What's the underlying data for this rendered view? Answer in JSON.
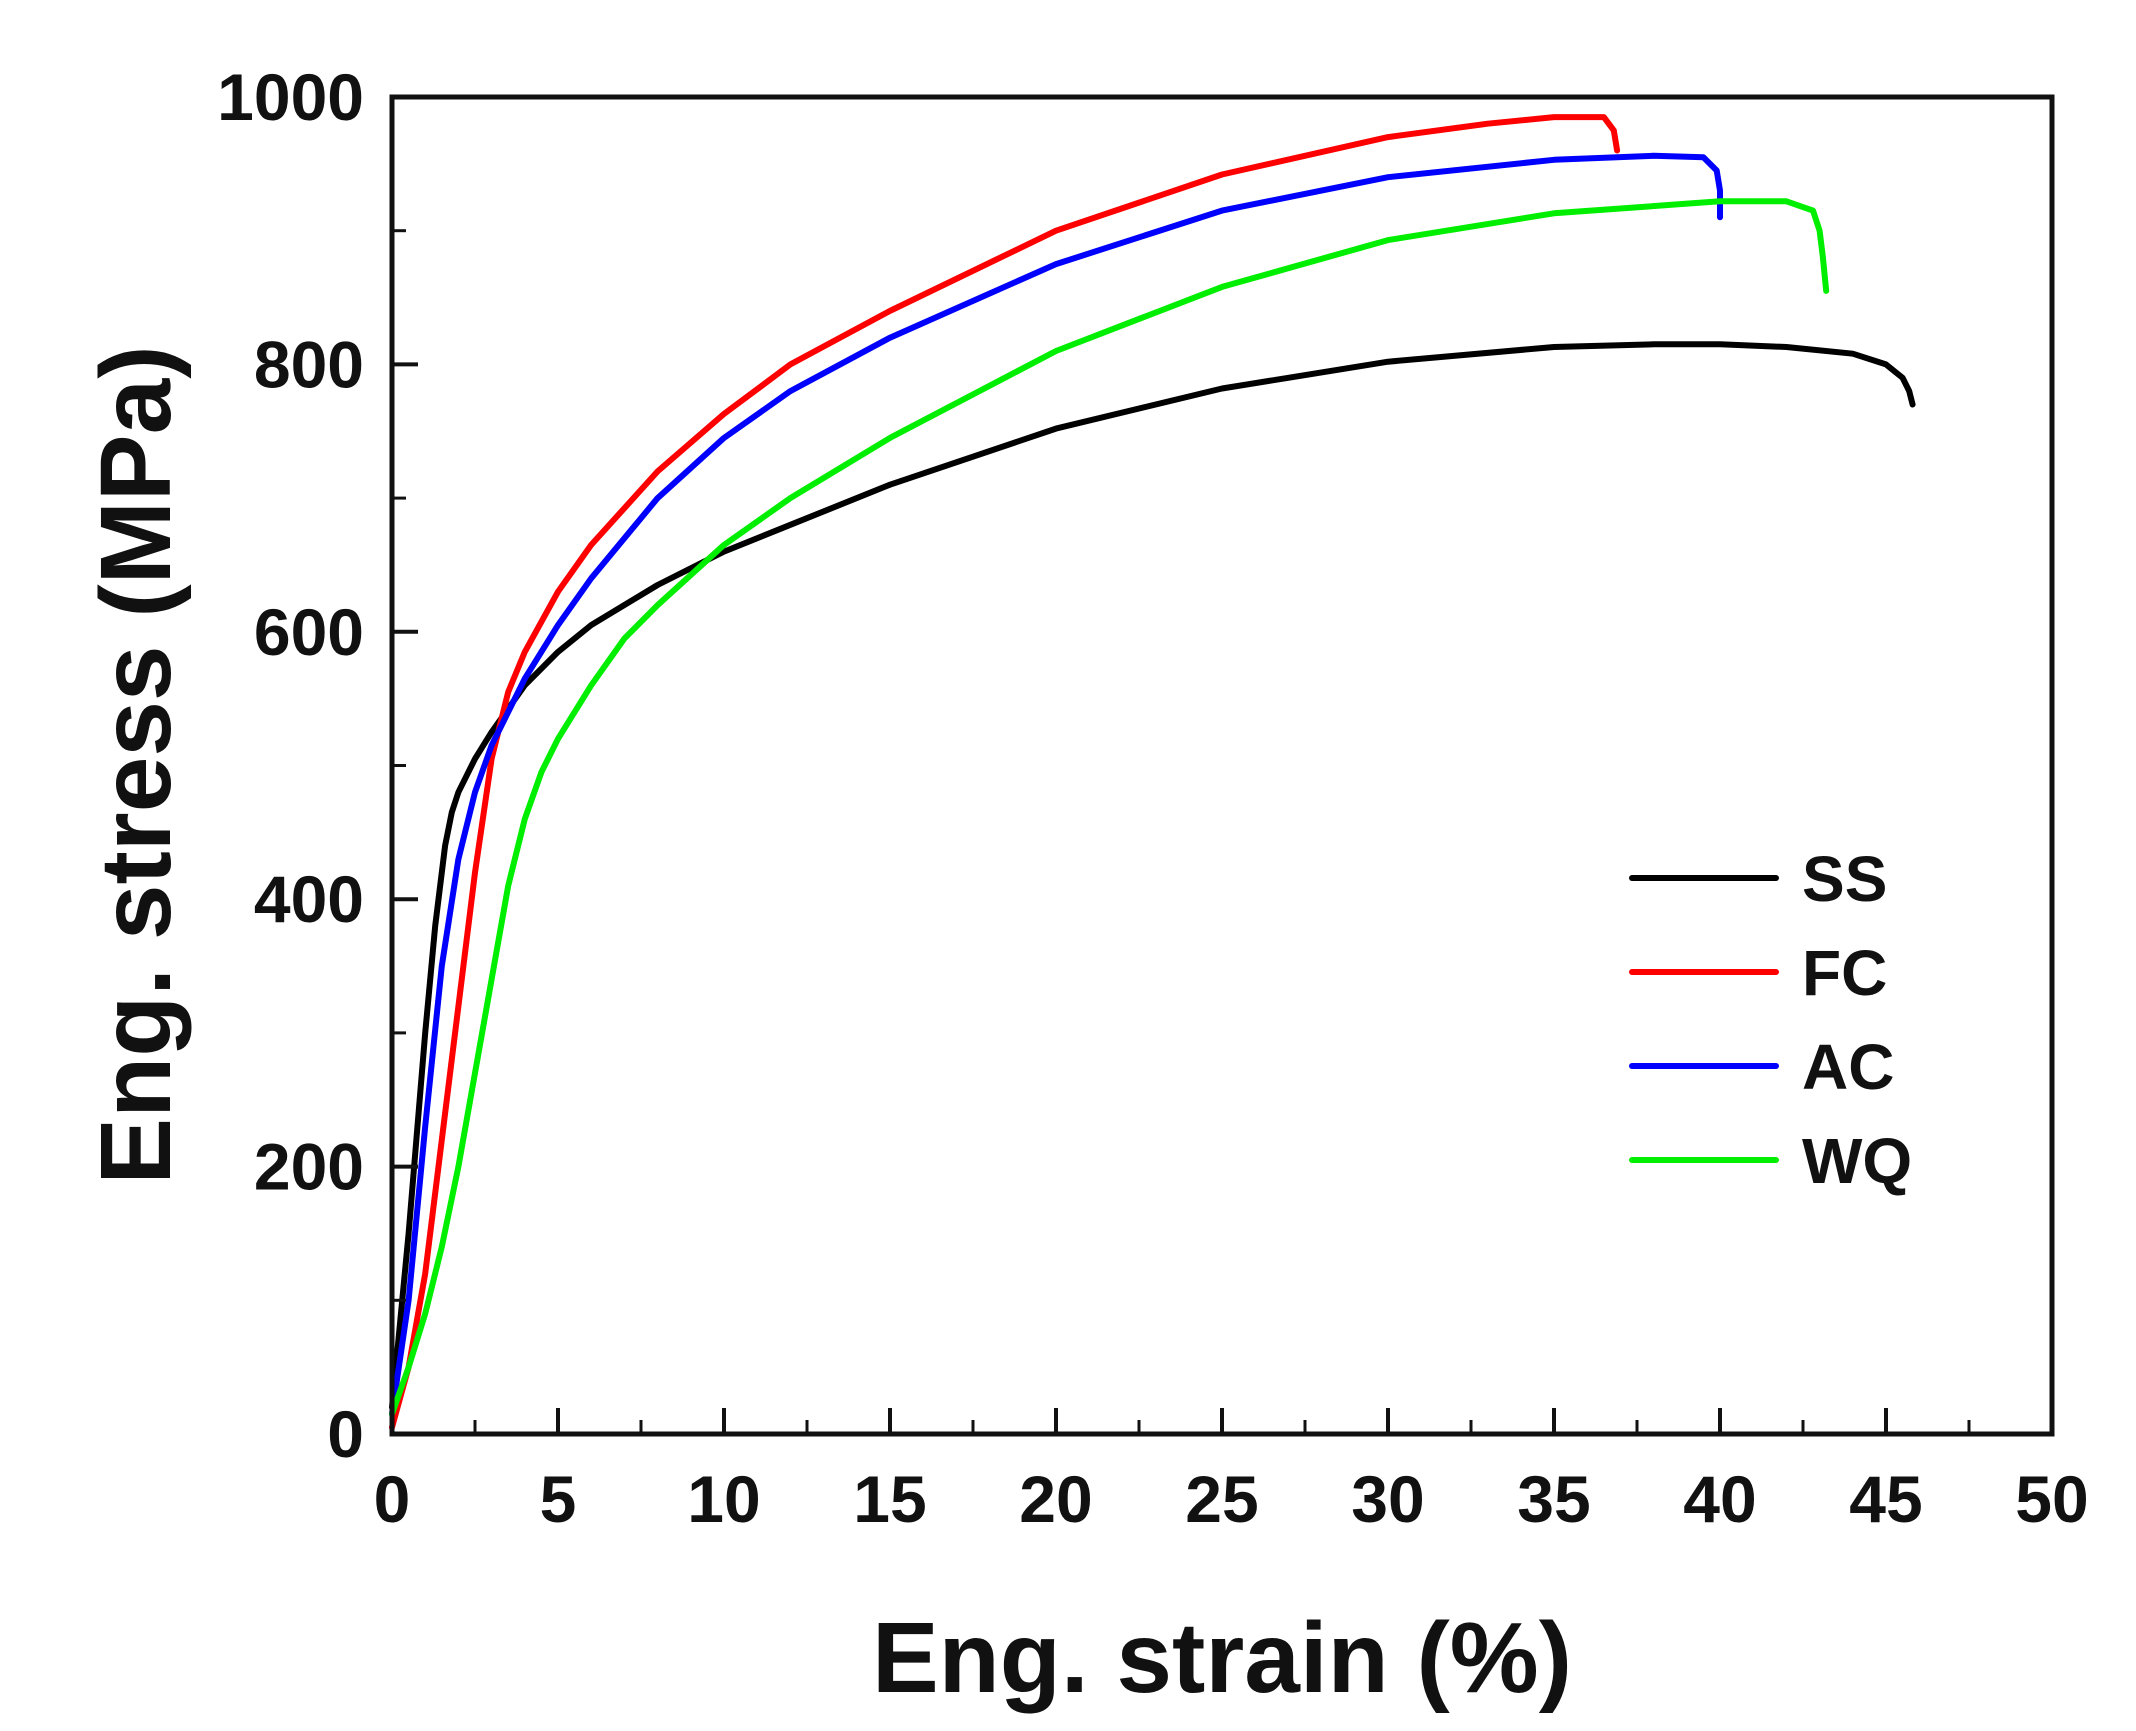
{
  "chart_data": {
    "type": "line",
    "title": "",
    "xlabel": "Eng. strain (%)",
    "ylabel": "Eng. stress (MPa)",
    "xlim": [
      0,
      50
    ],
    "ylim": [
      0,
      1000
    ],
    "x_ticks": [
      0,
      5,
      10,
      15,
      20,
      25,
      30,
      35,
      40,
      45,
      50
    ],
    "y_ticks": [
      0,
      200,
      400,
      600,
      800,
      1000
    ],
    "grid": false,
    "legend_position": "right",
    "series": [
      {
        "name": "SS",
        "color": "#000000",
        "x": [
          0,
          0.5,
          1.0,
          1.3,
          1.6,
          1.8,
          2.0,
          2.5,
          3.0,
          4.0,
          5.0,
          6.0,
          8.0,
          10.0,
          12.0,
          15.0,
          20.0,
          25.0,
          30.0,
          35.0,
          38.0,
          40.0,
          42.0,
          44.0,
          45.0,
          45.5,
          45.7,
          45.8
        ],
        "y": [
          20,
          150,
          300,
          380,
          440,
          465,
          480,
          505,
          525,
          560,
          585,
          605,
          635,
          660,
          680,
          710,
          752,
          782,
          802,
          813,
          815,
          815,
          813,
          808,
          800,
          790,
          780,
          770
        ]
      },
      {
        "name": "FC",
        "color": "#ff0000",
        "x": [
          0,
          0.5,
          1.0,
          1.5,
          2.0,
          2.5,
          3.0,
          3.5,
          4.0,
          5.0,
          6.0,
          8.0,
          10.0,
          12.0,
          15.0,
          20.0,
          25.0,
          30.0,
          33.0,
          35.0,
          36.5,
          36.8,
          36.9
        ],
        "y": [
          5,
          50,
          120,
          220,
          320,
          420,
          505,
          555,
          585,
          630,
          665,
          720,
          763,
          800,
          840,
          900,
          942,
          970,
          980,
          985,
          985,
          975,
          960
        ]
      },
      {
        "name": "AC",
        "color": "#0000ff",
        "x": [
          0,
          0.5,
          1.0,
          1.5,
          2.0,
          2.5,
          3.0,
          4.0,
          5.0,
          6.0,
          8.0,
          10.0,
          12.0,
          15.0,
          20.0,
          25.0,
          30.0,
          35.0,
          38.0,
          39.5,
          39.9,
          40.0,
          40.0
        ],
        "y": [
          15,
          100,
          230,
          350,
          430,
          480,
          515,
          565,
          605,
          640,
          700,
          745,
          780,
          820,
          875,
          915,
          940,
          953,
          956,
          955,
          945,
          930,
          910
        ]
      },
      {
        "name": "WQ",
        "color": "#00ee00",
        "x": [
          0,
          0.5,
          1.0,
          1.5,
          2.0,
          2.5,
          3.0,
          3.5,
          4.0,
          4.5,
          5.0,
          6.0,
          7.0,
          8.0,
          10.0,
          12.0,
          15.0,
          20.0,
          25.0,
          30.0,
          35.0,
          40.0,
          42.0,
          42.8,
          43.0,
          43.1,
          43.2
        ],
        "y": [
          15,
          50,
          90,
          140,
          200,
          270,
          340,
          410,
          460,
          495,
          520,
          560,
          595,
          620,
          665,
          700,
          745,
          810,
          858,
          893,
          913,
          922,
          922,
          915,
          900,
          880,
          855
        ]
      }
    ]
  }
}
